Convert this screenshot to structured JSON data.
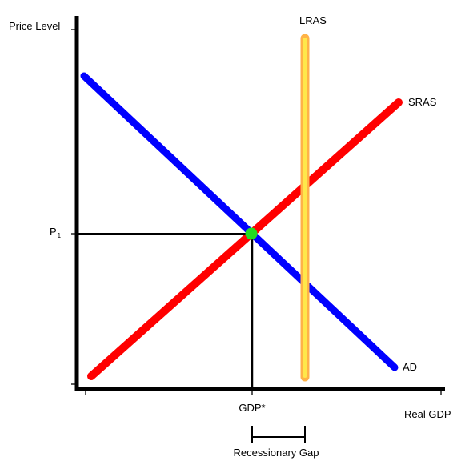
{
  "chart_data": {
    "type": "line",
    "ylabel": "Price Level",
    "xlabel": "Real GDP",
    "y_tick": {
      "label": "P",
      "subscript": "1"
    },
    "x_tick": "GDP*",
    "gap": {
      "label": "Recessionary Gap"
    },
    "series": [
      {
        "name": "LRAS",
        "color": "#ffe84a"
      },
      {
        "name": "SRAS",
        "color": "#ff0000"
      },
      {
        "name": "AD",
        "color": "#0000ff"
      }
    ],
    "equilibrium": {
      "color": "#22dd22"
    },
    "grid": false
  }
}
